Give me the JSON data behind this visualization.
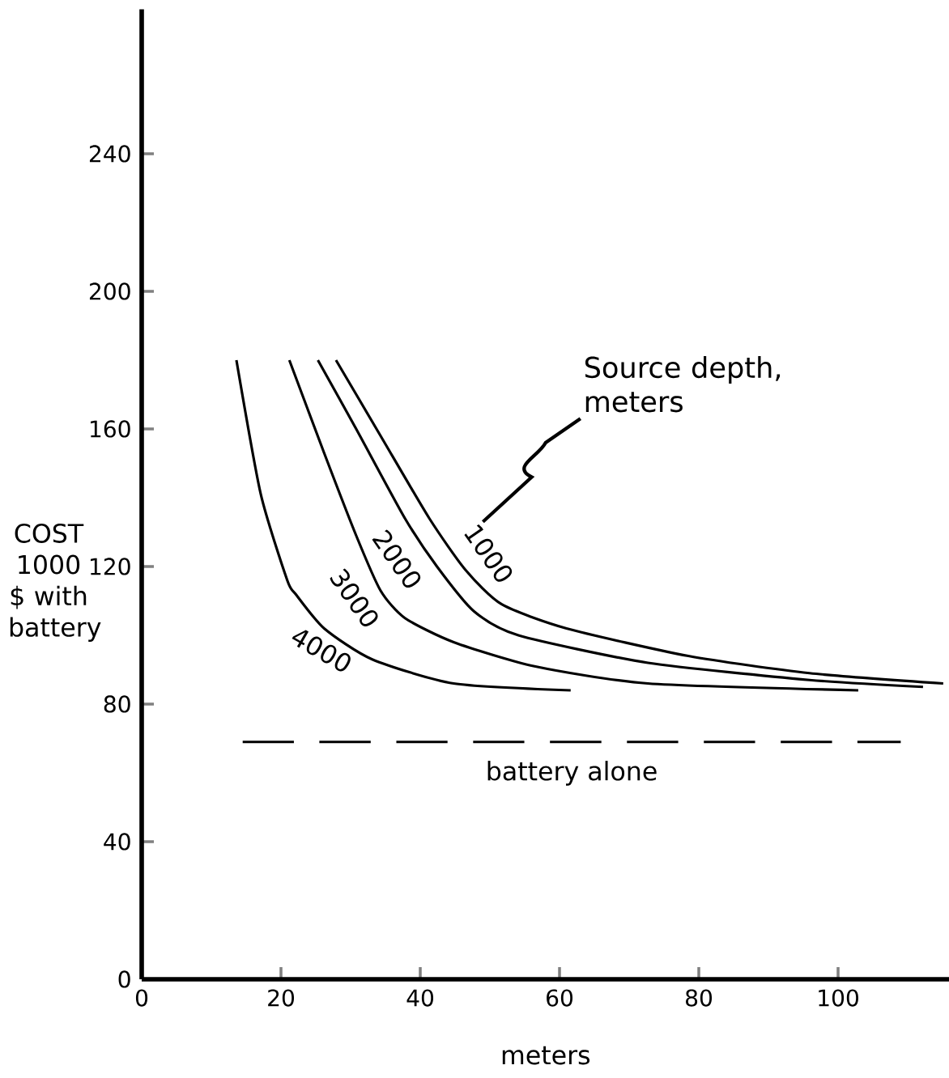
{
  "chart_data": {
    "type": "line",
    "xlabel": "meters",
    "ylabel": "COST 1000 $ with battery",
    "legend_title": "Source depth, meters",
    "xlim": [
      0,
      116
    ],
    "ylim": [
      0,
      282
    ],
    "xticks": [
      0,
      20,
      40,
      60,
      80,
      100
    ],
    "yticks": [
      0,
      40,
      80,
      120,
      160,
      200,
      240
    ],
    "series": [
      {
        "name": "1000",
        "color": "#000000",
        "x": [
          27.9,
          34.3,
          41.3,
          46.5,
          51.7,
          61.0,
          78.5,
          95.9,
          115.1
        ],
        "values": [
          180,
          158,
          134,
          119,
          109,
          102,
          94,
          89,
          86
        ]
      },
      {
        "name": "2000",
        "color": "#000000",
        "x": [
          25.3,
          30.8,
          37.8,
          42.4,
          47.7,
          54.1,
          72.7,
          95.9,
          112.2
        ],
        "values": [
          180,
          160,
          134,
          120,
          107,
          100,
          92,
          87,
          85
        ]
      },
      {
        "name": "3000",
        "color": "#000000",
        "x": [
          21.2,
          26.2,
          30.8,
          34.3,
          37.8,
          44.8,
          56.4,
          72.7,
          102.9
        ],
        "values": [
          180,
          153,
          129,
          113,
          105,
          98,
          91,
          86,
          84
        ]
      },
      {
        "name": "4000",
        "color": "#000000",
        "x": [
          13.6,
          17.1,
          20.9,
          22.1,
          26.2,
          33.1,
          44.8,
          61.6
        ],
        "values": [
          180,
          141,
          116,
          112,
          102,
          93,
          86,
          84
        ]
      },
      {
        "name": "battery alone",
        "color": "#000000",
        "line_style": "dashed",
        "x": [
          14.5,
          109
        ],
        "values": [
          69,
          69
        ]
      }
    ]
  }
}
